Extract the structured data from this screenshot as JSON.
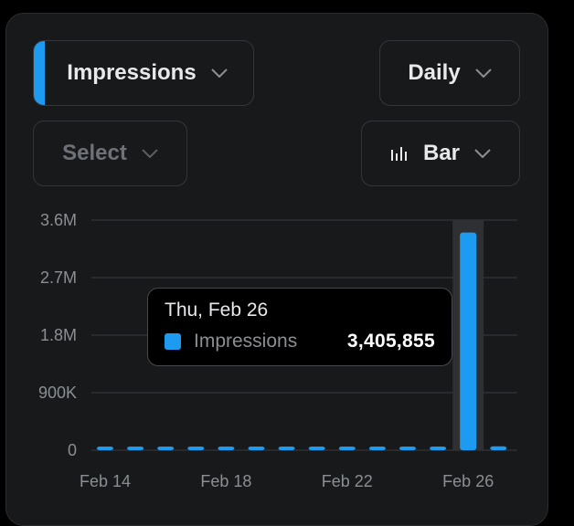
{
  "controls": {
    "metric": {
      "label": "Impressions",
      "accent": "#1d9bf0",
      "icon": "chevron-down-icon"
    },
    "period": {
      "label": "Daily",
      "icon": "chevron-down-icon"
    },
    "compare": {
      "placeholder": "Select",
      "icon": "chevron-down-icon"
    },
    "chart_type": {
      "label": "Bar",
      "icon": "bar-chart-icon"
    }
  },
  "tooltip": {
    "date": "Thu, Feb 26",
    "series_name": "Impressions",
    "value": "3,405,855",
    "swatch_color": "#1d9bf0"
  },
  "chart_data": {
    "type": "bar",
    "categories": [
      "Feb 14",
      "Feb 15",
      "Feb 16",
      "Feb 17",
      "Feb 18",
      "Feb 19",
      "Feb 20",
      "Feb 21",
      "Feb 22",
      "Feb 23",
      "Feb 24",
      "Feb 25",
      "Feb 26",
      "Feb 27"
    ],
    "x_tick_labels": [
      "Feb 14",
      "Feb 18",
      "Feb 22",
      "Feb 26"
    ],
    "y_tick_labels": [
      "0",
      "900K",
      "1.8M",
      "2.7M",
      "3.6M"
    ],
    "ylim": [
      0,
      3600000
    ],
    "series": [
      {
        "values": [
          20000,
          15000,
          15000,
          15000,
          20000,
          15000,
          15000,
          15000,
          15000,
          15000,
          15000,
          15000,
          3405855,
          60000
        ],
        "color": "#1d9bf0"
      }
    ],
    "highlighted_category": "Feb 26",
    "grid": true
  }
}
